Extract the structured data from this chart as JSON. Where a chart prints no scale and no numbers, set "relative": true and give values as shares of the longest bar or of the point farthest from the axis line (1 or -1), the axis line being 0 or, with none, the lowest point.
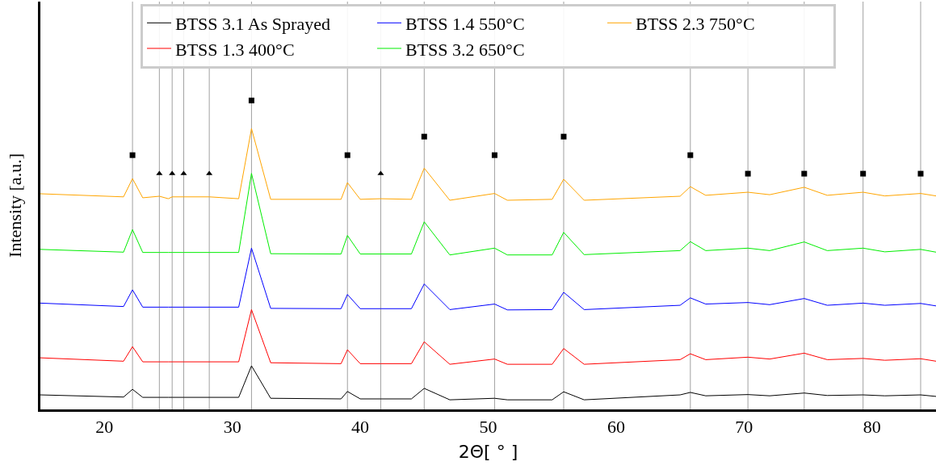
{
  "chart_data": {
    "type": "line",
    "relative": true,
    "xlabel": "2Θ[ ° ]",
    "ylabel": "Intensity [a.u.]",
    "xlim": [
      15,
      85
    ],
    "xticks": [
      20,
      30,
      40,
      50,
      60,
      70,
      80
    ],
    "grid": false,
    "legend": "top",
    "marker": "none",
    "line_style": "solid",
    "x": [
      15,
      21.5,
      22.2,
      23,
      24.3,
      25,
      25.3,
      26.2,
      28.2,
      30.5,
      31.5,
      33,
      38.5,
      39,
      40,
      41.6,
      44,
      45,
      47,
      50.5,
      51.5,
      55,
      55.9,
      57.5,
      65,
      65.8,
      67,
      70.3,
      72,
      74.7,
      76.5,
      79.3,
      81,
      83.8,
      85
    ],
    "series": [
      {
        "name": "BTSS 3.1 As Sprayed",
        "color": "#000000",
        "values": [
          0.047,
          0.04,
          0.065,
          0.039,
          0.039,
          0.039,
          0.039,
          0.039,
          0.039,
          0.039,
          0.141,
          0.036,
          0.034,
          0.058,
          0.034,
          0.034,
          0.034,
          0.068,
          0.031,
          0.036,
          0.031,
          0.031,
          0.057,
          0.031,
          0.047,
          0.055,
          0.044,
          0.048,
          0.044,
          0.053,
          0.045,
          0.047,
          0.044,
          0.047,
          0.042
        ]
      },
      {
        "name": "BTSS 1.3 400°C",
        "color": "#ff0000",
        "values": [
          0.167,
          0.156,
          0.203,
          0.154,
          0.154,
          0.154,
          0.154,
          0.154,
          0.154,
          0.154,
          0.323,
          0.151,
          0.148,
          0.193,
          0.148,
          0.148,
          0.148,
          0.219,
          0.146,
          0.163,
          0.146,
          0.146,
          0.197,
          0.146,
          0.161,
          0.18,
          0.161,
          0.169,
          0.163,
          0.182,
          0.161,
          0.165,
          0.159,
          0.164,
          0.156
        ]
      },
      {
        "name": "BTSS 1.4 550°C",
        "color": "#0000ff",
        "values": [
          0.344,
          0.333,
          0.387,
          0.331,
          0.331,
          0.331,
          0.331,
          0.331,
          0.331,
          0.331,
          0.522,
          0.327,
          0.326,
          0.372,
          0.326,
          0.326,
          0.326,
          0.406,
          0.323,
          0.341,
          0.322,
          0.323,
          0.379,
          0.323,
          0.337,
          0.361,
          0.341,
          0.346,
          0.339,
          0.359,
          0.337,
          0.344,
          0.337,
          0.343,
          0.335
        ]
      },
      {
        "name": "BTSS 3.2 650°C",
        "color": "#00ee00",
        "values": [
          0.518,
          0.509,
          0.582,
          0.508,
          0.508,
          0.508,
          0.508,
          0.508,
          0.508,
          0.508,
          0.764,
          0.504,
          0.503,
          0.563,
          0.503,
          0.503,
          0.503,
          0.607,
          0.5,
          0.522,
          0.5,
          0.5,
          0.573,
          0.501,
          0.514,
          0.543,
          0.514,
          0.522,
          0.514,
          0.542,
          0.514,
          0.522,
          0.51,
          0.518,
          0.509
        ]
      },
      {
        "name": "BTSS 2.3 750°C",
        "color": "#ffa500",
        "values": [
          0.698,
          0.688,
          0.747,
          0.685,
          0.69,
          0.682,
          0.688,
          0.688,
          0.688,
          0.682,
          0.909,
          0.68,
          0.68,
          0.734,
          0.68,
          0.682,
          0.68,
          0.781,
          0.677,
          0.699,
          0.677,
          0.68,
          0.745,
          0.677,
          0.69,
          0.721,
          0.693,
          0.703,
          0.695,
          0.719,
          0.693,
          0.703,
          0.691,
          0.699,
          0.691
        ]
      },
      {
        "type": "scatter",
        "marker": "square",
        "color": "#000000",
        "x": [
          22.2,
          31.5,
          39.0,
          45.0,
          50.5,
          55.9,
          65.8,
          70.3,
          74.7,
          79.3,
          83.8
        ],
        "values": [
          0.823,
          1,
          0.823,
          0.883,
          0.823,
          0.883,
          0.823,
          0.763,
          0.763,
          0.763,
          0.763
        ]
      },
      {
        "type": "scatter",
        "marker": "triangle",
        "color": "#000000",
        "x": [
          24.3,
          25.3,
          26.2,
          28.2,
          41.6
        ],
        "values": [
          0.763,
          0.763,
          0.763,
          0.763,
          0.763
        ]
      }
    ],
    "ref_lines": [
      {
        "axis": "x",
        "value": 22.2,
        "color": "#a0a0a0"
      },
      {
        "axis": "x",
        "value": 24.3,
        "color": "#a0a0a0"
      },
      {
        "axis": "x",
        "value": 25.3,
        "color": "#a0a0a0"
      },
      {
        "axis": "x",
        "value": 26.2,
        "color": "#a0a0a0"
      },
      {
        "axis": "x",
        "value": 28.2,
        "color": "#a0a0a0"
      },
      {
        "axis": "x",
        "value": 31.5,
        "color": "#a0a0a0"
      },
      {
        "axis": "x",
        "value": 39.0,
        "color": "#a0a0a0"
      },
      {
        "axis": "x",
        "value": 41.6,
        "color": "#a0a0a0"
      },
      {
        "axis": "x",
        "value": 45.0,
        "color": "#a0a0a0"
      },
      {
        "axis": "x",
        "value": 50.5,
        "color": "#a0a0a0"
      },
      {
        "axis": "x",
        "value": 55.9,
        "color": "#a0a0a0"
      },
      {
        "axis": "x",
        "value": 65.8,
        "color": "#a0a0a0"
      },
      {
        "axis": "x",
        "value": 70.3,
        "color": "#a0a0a0"
      },
      {
        "axis": "x",
        "value": 74.7,
        "color": "#a0a0a0"
      },
      {
        "axis": "x",
        "value": 79.3,
        "color": "#a0a0a0"
      },
      {
        "axis": "x",
        "value": 83.8,
        "color": "#a0a0a0"
      }
    ]
  }
}
